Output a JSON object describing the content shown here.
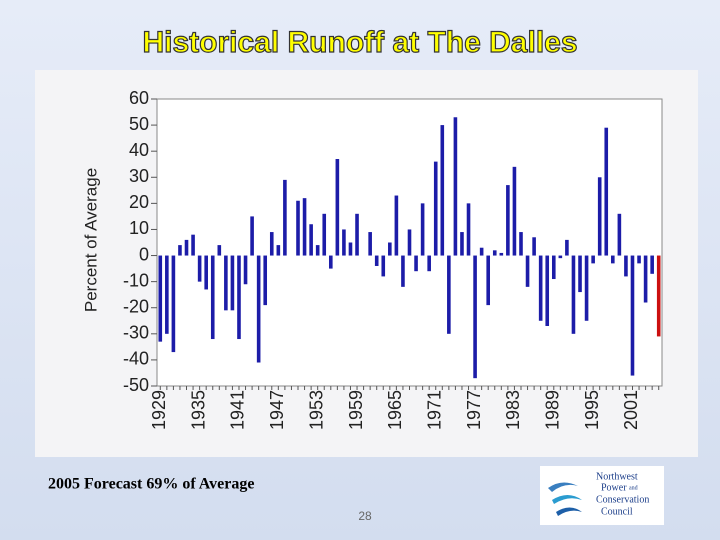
{
  "slide": {
    "title": "Historical Runoff at The Dalles",
    "footer": "2005 Forecast 69% of Average",
    "page_number": "28",
    "logo": [
      "Northwest",
      "Power",
      "and",
      "Conservation",
      "Council"
    ]
  },
  "chart_data": {
    "type": "bar",
    "ylabel": "Percent of Average",
    "categories": [
      "1929",
      null,
      null,
      null,
      null,
      null,
      "1935",
      null,
      null,
      null,
      null,
      null,
      "1941",
      null,
      null,
      null,
      null,
      null,
      "1947",
      null,
      null,
      null,
      null,
      null,
      "1953",
      null,
      null,
      null,
      null,
      null,
      "1959",
      null,
      null,
      null,
      null,
      null,
      "1965",
      null,
      null,
      null,
      null,
      null,
      "1971",
      null,
      null,
      null,
      null,
      null,
      "1977",
      null,
      null,
      null,
      null,
      null,
      "1983",
      null,
      null,
      null,
      null,
      null,
      "1989",
      null,
      null,
      null,
      null,
      null,
      "1995",
      null,
      null,
      null,
      null,
      null,
      "2001",
      null,
      null,
      null,
      null
    ],
    "values": [
      -33,
      -30,
      -37,
      4,
      6,
      8,
      -10,
      -13,
      -32,
      4,
      -21,
      -21,
      -32,
      -11,
      15,
      -41,
      -19,
      9,
      4,
      29,
      0,
      21,
      22,
      12,
      4,
      16,
      -5,
      37,
      10,
      5,
      16,
      0,
      9,
      -4,
      -8,
      5,
      23,
      -12,
      10,
      -6,
      20,
      -6,
      36,
      50,
      -30,
      53,
      9,
      20,
      -47,
      3,
      -19,
      2,
      1,
      27,
      34,
      9,
      -12,
      7,
      -25,
      -27,
      -9,
      -1,
      6,
      -30,
      -14,
      -25,
      -3,
      30,
      49,
      -3,
      16,
      -8,
      -46,
      -3,
      -18,
      -7,
      -31
    ],
    "color": "#1c1ca8",
    "last_color": "#cc1010",
    "ylim": [
      -50,
      60
    ],
    "yticks": [
      60,
      50,
      40,
      30,
      20,
      10,
      0,
      -10,
      -20,
      -30,
      -40,
      -50
    ],
    "grid": false
  }
}
